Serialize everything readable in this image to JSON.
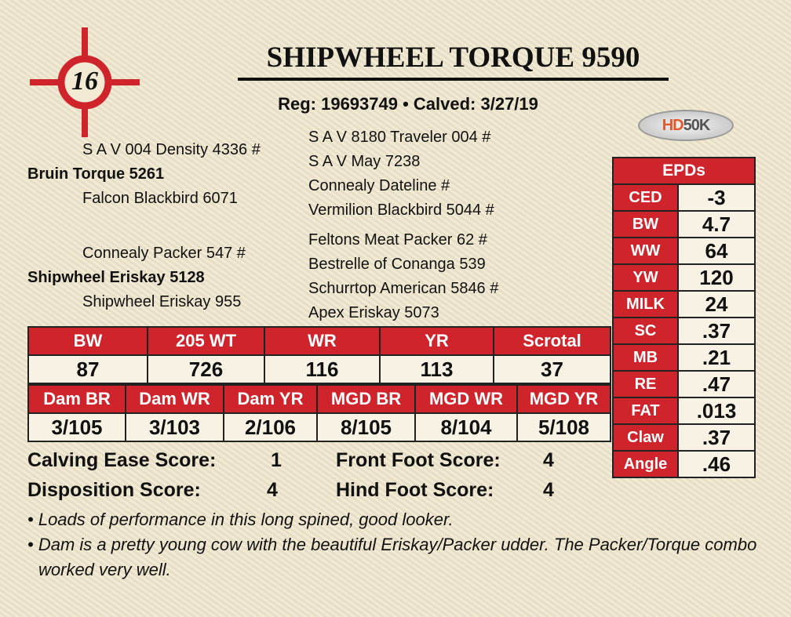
{
  "lot_number": "16",
  "title": "SHIPWHEEL TORQUE 9590",
  "reg_line": "Reg: 19693749 • Calved: 3/27/19",
  "badge": {
    "text_a": "HD",
    "text_b": "50K",
    "colors": [
      "#e2582a",
      "#555555"
    ]
  },
  "pedigree": {
    "sire": "Bruin Torque 5261",
    "sire_sire": "S A V 004 Density 4336 #",
    "sire_dam": "Falcon Blackbird 6071",
    "sss": "S A V 8180 Traveler 004 #",
    "ssd": "S A V May 7238",
    "sds": "Connealy Dateline #",
    "sdd": "Vermilion Blackbird 5044 #",
    "dam": "Shipwheel Eriskay 5128",
    "dam_sire": "Connealy Packer 547 #",
    "dam_dam": "Shipwheel Eriskay 955",
    "dss": "Feltons Meat Packer 62 #",
    "dsd": "Bestrelle of Conanga 539",
    "dds": "Schurrtop American 5846 #",
    "ddd": "Apex Eriskay 5073"
  },
  "performance": {
    "headers": [
      "BW",
      "205 WT",
      "WR",
      "YR",
      "Scrotal"
    ],
    "values": [
      "87",
      "726",
      "116",
      "113",
      "37"
    ]
  },
  "dam_perf": {
    "headers": [
      "Dam BR",
      "Dam WR",
      "Dam YR",
      "MGD BR",
      "MGD WR",
      "MGD YR"
    ],
    "values": [
      "3/105",
      "3/103",
      "2/106",
      "8/105",
      "8/104",
      "5/108"
    ]
  },
  "epds": {
    "title": "EPDs",
    "rows": [
      [
        "CED",
        "-3"
      ],
      [
        "BW",
        "4.7"
      ],
      [
        "WW",
        "64"
      ],
      [
        "YW",
        "120"
      ],
      [
        "MILK",
        "24"
      ],
      [
        "SC",
        ".37"
      ],
      [
        "MB",
        ".21"
      ],
      [
        "RE",
        ".47"
      ],
      [
        "FAT",
        ".013"
      ],
      [
        "Claw",
        ".37"
      ],
      [
        "Angle",
        ".46"
      ]
    ]
  },
  "scores": {
    "calving_label": "Calving Ease Score:",
    "calving": "1",
    "disposition_label": "Disposition Score:",
    "disposition": "4",
    "front_label": "Front Foot Score:",
    "front": "4",
    "hind_label": "Hind Foot Score:",
    "hind": "4"
  },
  "notes": [
    "Loads of performance in this long spined, good looker.",
    "Dam is a pretty young cow with the beautiful Eriskay/Packer udder. The Packer/Torque combo worked very well."
  ],
  "accent": "#d0242c"
}
